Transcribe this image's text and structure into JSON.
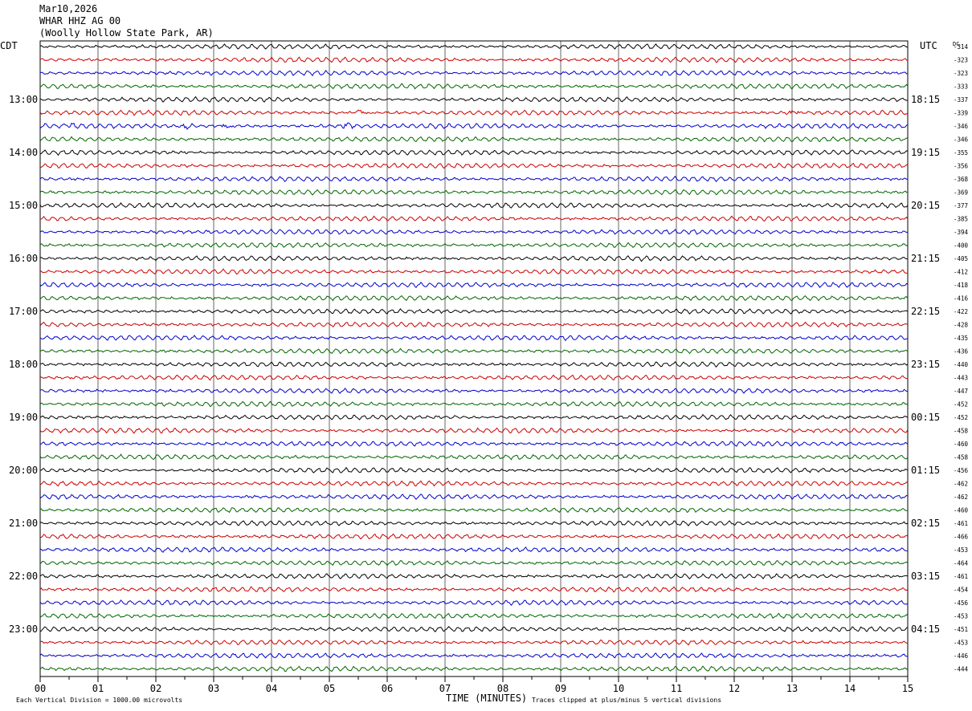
{
  "header": {
    "date": "Mar10,2026",
    "station": "WHAR HHZ AG 00",
    "location": "(Woolly Hollow State Park, AR)"
  },
  "left_axis_label": "CDT",
  "right_axis_label": "UTC",
  "dc_label": "DC",
  "footer": {
    "scale_note": "Each Vertical Division = 1000.00 microvolts",
    "x_axis_title": "TIME (MINUTES)",
    "clip_note": "Traces clipped at plus/minus 5 vertical divisions"
  },
  "colors": {
    "trace_cycle": [
      "#000000",
      "#cc0000",
      "#0000cc",
      "#006600"
    ],
    "grid": "#000000"
  },
  "chart_data": {
    "type": "line",
    "title": "",
    "xlabel": "TIME (MINUTES)",
    "ylabel": "",
    "x_ticks": [
      "00",
      "01",
      "02",
      "03",
      "04",
      "05",
      "06",
      "07",
      "08",
      "09",
      "10",
      "11",
      "12",
      "13",
      "14",
      "15"
    ],
    "xlim": [
      0,
      15
    ],
    "rows_per_hour": 4,
    "cdt_hour_labels": [
      "13:00",
      "14:00",
      "15:00",
      "16:00",
      "17:00",
      "18:00",
      "19:00",
      "20:00",
      "21:00",
      "22:00",
      "23:00"
    ],
    "utc_hour_labels": [
      "18:15",
      "19:15",
      "20:15",
      "21:15",
      "22:15",
      "23:15",
      "00:15",
      "01:15",
      "02:15",
      "03:15",
      "04:15"
    ],
    "dc_offsets": [
      "-314",
      "-323",
      "-323",
      "-333",
      "-337",
      "-339",
      "-346",
      "-346",
      "-355",
      "-356",
      "-368",
      "-369",
      "-377",
      "-385",
      "-394",
      "-400",
      "-405",
      "-412",
      "-418",
      "-416",
      "-422",
      "-428",
      "-435",
      "-436",
      "-440",
      "-443",
      "-447",
      "-452",
      "-452",
      "-458",
      "-460",
      "-458",
      "-456",
      "-462",
      "-462",
      "-460",
      "-461",
      "-466",
      "-453",
      "-464",
      "-461",
      "-454",
      "-456",
      "-453",
      "-451",
      "-453",
      "-446",
      "-444"
    ],
    "trace_count": 48,
    "notable_events": [
      {
        "row": 5,
        "minute": 5.5
      },
      {
        "row": 5,
        "minute": 13.0
      },
      {
        "row": 6,
        "minute": 0.5
      },
      {
        "row": 6,
        "minute": 2.5
      },
      {
        "row": 6,
        "minute": 3.2
      },
      {
        "row": 6,
        "minute": 5.3
      }
    ]
  }
}
